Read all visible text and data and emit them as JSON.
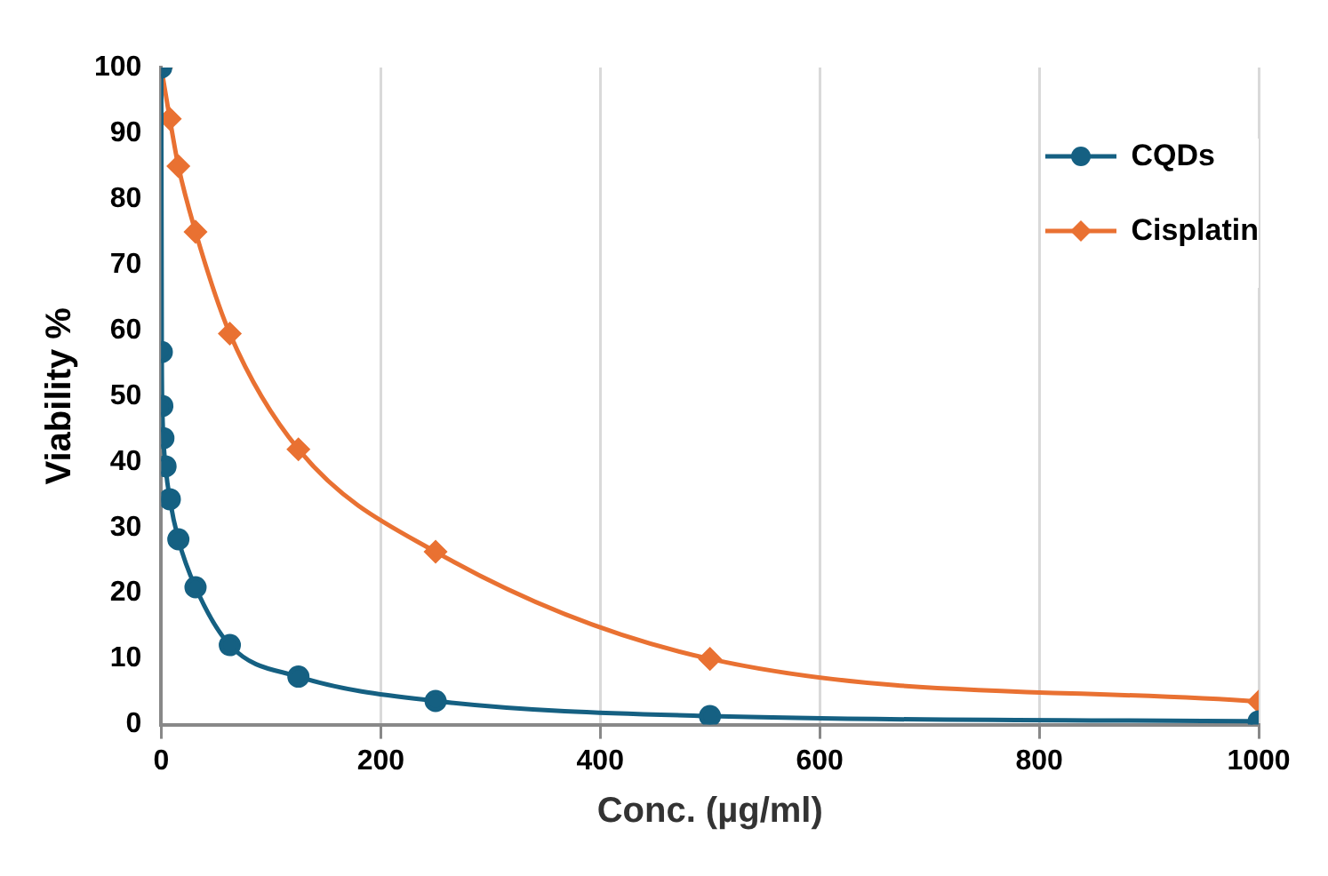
{
  "chart_data": {
    "type": "line",
    "xlabel": "Conc. (µg/ml)",
    "ylabel": "Viability %",
    "xlim": [
      0,
      1000
    ],
    "xticks": [
      0,
      200,
      400,
      600,
      800,
      1000
    ],
    "ylim": [
      0,
      100
    ],
    "yticks": [
      0,
      10,
      20,
      30,
      40,
      50,
      60,
      70,
      80,
      90,
      100
    ],
    "grid": "x",
    "legend": "top right",
    "series": [
      {
        "name": "CQDs",
        "color": "#156082",
        "marker": "circle",
        "x": [
          0,
          0.49,
          0.98,
          1.95,
          3.9,
          7.8,
          15.6,
          31.25,
          62.5,
          125,
          250,
          500,
          1000
        ],
        "values": [
          100,
          56.7,
          48.5,
          43.6,
          39.3,
          34.3,
          28.2,
          20.9,
          12.1,
          7.3,
          3.6,
          1.3,
          0.5
        ]
      },
      {
        "name": "Cisplatin",
        "color": "#e97132",
        "marker": "diamond",
        "x": [
          0,
          7.8,
          15.6,
          31.25,
          62.5,
          125,
          250,
          500,
          1000
        ],
        "values": [
          100,
          92.2,
          85,
          75,
          59.5,
          41.9,
          26.3,
          10,
          3.5
        ]
      }
    ]
  }
}
